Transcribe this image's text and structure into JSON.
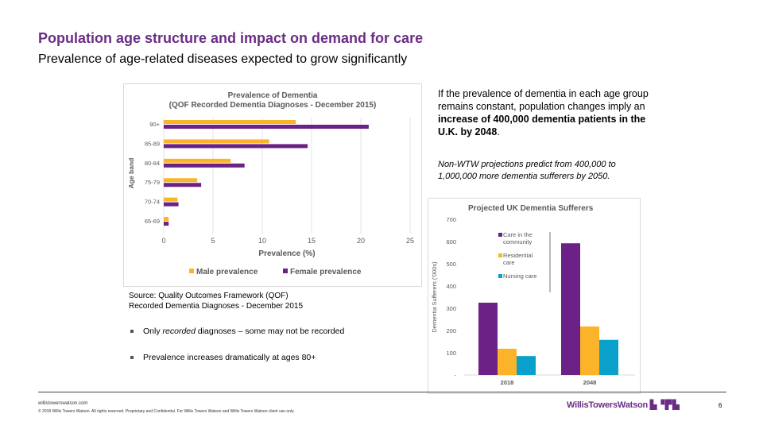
{
  "header": {
    "title": "Population age structure and impact on demand for care",
    "subtitle": "Prevalence of age-related diseases expected to grow significantly"
  },
  "text": {
    "intro_plain": "If the prevalence of dementia in each age group remains constant, population changes imply an ",
    "intro_bold": "increase of 400,000 dementia patients in the U.K. by 2048",
    "intro_end": ".",
    "note": "Non-WTW projections predict from 400,000 to 1,000,000 more dementia sufferers by 2050.",
    "source_line1": "Source: Quality Outcomes Framework (QOF)",
    "source_line2": "Recorded Dementia Diagnoses - December 2015",
    "bullet1_pre": "Only ",
    "bullet1_em": "recorded",
    "bullet1_post": " diagnoses – some may not be recorded",
    "bullet2": "Prevalence increases dramatically at ages 80+"
  },
  "footer": {
    "site": "willistowerswatson.com",
    "copyright": "© 2018 Willis Towers Watson. All rights reserved. Proprietary and Confidential. For Willis Towers Watson and Willis Towers Watson client use only.",
    "logo": "WillisTowersWatson",
    "page": "6"
  },
  "colors": {
    "purple": "#6b2185",
    "orange": "#fbb42a",
    "blue": "#0aa0cc",
    "title": "#6b2c86"
  },
  "chart_data": [
    {
      "type": "bar",
      "orientation": "horizontal",
      "title": "Prevalence of Dementia",
      "subtitle": "(QOF Recorded Dementia Diagnoses - December 2015)",
      "categories": [
        "90+",
        "85-89",
        "80-84",
        "75-79",
        "70-74",
        "65-69"
      ],
      "series": [
        {
          "name": "Male prevalence",
          "color": "#fbb42a",
          "values": [
            13.4,
            10.7,
            6.8,
            3.4,
            1.4,
            0.5
          ]
        },
        {
          "name": "Female prevalence",
          "color": "#6b2185",
          "values": [
            20.8,
            14.6,
            8.2,
            3.8,
            1.5,
            0.5
          ]
        }
      ],
      "xlabel": "Prevalence (%)",
      "ylabel": "Age band",
      "xlim": [
        0,
        25
      ],
      "xticks": [
        "0",
        "5",
        "10",
        "15",
        "20",
        "25"
      ],
      "grid": true,
      "legend": "bottom"
    },
    {
      "type": "bar",
      "title": "Projected UK Dementia Sufferers",
      "categories": [
        "2018",
        "2048"
      ],
      "series": [
        {
          "name": "Care in the community",
          "label_lines": [
            "Care in the",
            "community"
          ],
          "color": "#6b2185",
          "values": [
            325,
            592
          ]
        },
        {
          "name": "Residential care",
          "label_lines": [
            "Residential",
            "care"
          ],
          "color": "#fbb42a",
          "values": [
            118,
            218
          ]
        },
        {
          "name": "Nursing care",
          "label_lines": [
            "Nursing care"
          ],
          "color": "#0aa0cc",
          "values": [
            85,
            158
          ]
        }
      ],
      "ylabel": "Dementia Sufferers ('000s)",
      "ylim": [
        0,
        700
      ],
      "yticks": [
        "-",
        "100",
        "200",
        "300",
        "400",
        "500",
        "600",
        "700"
      ],
      "legend": "top-left"
    }
  ]
}
